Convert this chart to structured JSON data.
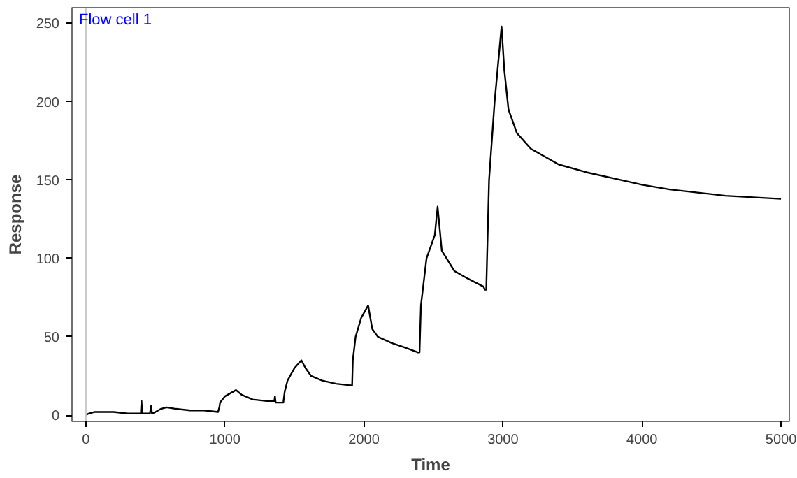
{
  "chart_data": {
    "type": "line",
    "title": "Flow cell 1",
    "xlabel": "Time",
    "ylabel": "Response",
    "x": [
      0,
      20,
      60,
      100,
      200,
      300,
      395,
      400,
      405,
      460,
      470,
      475,
      500,
      540,
      580,
      650,
      750,
      850,
      950,
      960,
      965,
      1000,
      1040,
      1080,
      1120,
      1200,
      1300,
      1355,
      1360,
      1365,
      1420,
      1430,
      1450,
      1500,
      1550,
      1580,
      1620,
      1700,
      1800,
      1900,
      1915,
      1920,
      1940,
      1980,
      2030,
      2060,
      2100,
      2200,
      2300,
      2390,
      2400,
      2410,
      2450,
      2510,
      2530,
      2560,
      2650,
      2750,
      2860,
      2870,
      2880,
      2900,
      2940,
      2990,
      3010,
      3040,
      3100,
      3200,
      3400,
      3600,
      3800,
      4000,
      4200,
      4400,
      4600,
      4800,
      5000
    ],
    "series": [
      {
        "color": "#000000",
        "values": [
          0,
          1,
          2,
          2,
          2,
          1,
          1,
          9,
          1,
          1,
          6,
          1,
          2,
          4,
          5,
          4,
          3,
          3,
          2,
          5,
          8,
          12,
          14,
          16,
          13,
          10,
          9,
          9,
          12,
          8,
          8,
          15,
          22,
          30,
          35,
          30,
          25,
          22,
          20,
          19,
          19,
          35,
          50,
          62,
          70,
          55,
          50,
          46,
          43,
          40,
          40,
          70,
          100,
          115,
          133,
          105,
          92,
          87,
          82,
          80,
          80,
          150,
          200,
          248,
          220,
          195,
          180,
          170,
          160,
          155,
          151,
          147,
          144,
          142,
          140,
          139,
          138
        ]
      }
    ],
    "xlim": [
      -100,
      5060
    ],
    "ylim": [
      -4,
      260
    ],
    "xticks": [
      0,
      1000,
      2000,
      3000,
      4000,
      5000
    ],
    "yticks": [
      0,
      50,
      100,
      150,
      200,
      250
    ],
    "ref_lines": [
      {
        "axis": "x",
        "value": 0,
        "color": "#c8c8c8"
      }
    ],
    "grid": false,
    "marker": "none",
    "line_style": "solid"
  }
}
